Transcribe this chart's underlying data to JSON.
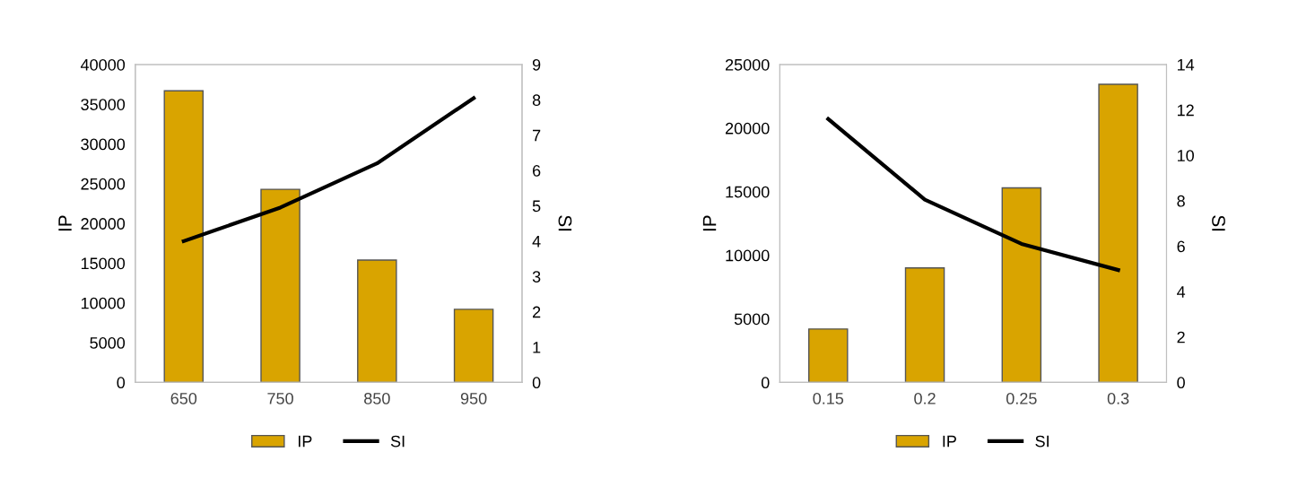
{
  "chart_data": [
    {
      "type": "bar",
      "categories": [
        "650",
        "750",
        "850",
        "950"
      ],
      "ylabel": "IP",
      "y2label": "SI",
      "ylim": [
        0,
        40000
      ],
      "yticks": [
        0,
        5000,
        10000,
        15000,
        20000,
        25000,
        30000,
        35000,
        40000
      ],
      "y2lim": [
        0,
        9
      ],
      "y2ticks": [
        0,
        1,
        2,
        3,
        4,
        5,
        6,
        7,
        8,
        9
      ],
      "legend": "bottom",
      "grid": false,
      "series": [
        {
          "name": "IP",
          "color": "#d9a400",
          "values": [
            36700,
            24300,
            15400,
            9200
          ]
        },
        {
          "name": "SI",
          "type": "line",
          "axis": "y2",
          "color": "#000000",
          "values": [
            4.0,
            4.95,
            6.2,
            8.05
          ]
        }
      ]
    },
    {
      "type": "bar",
      "categories": [
        "0.15",
        "0.2",
        "0.25",
        "0.3"
      ],
      "ylabel": "IP",
      "y2label": "SI",
      "ylim": [
        0,
        25000
      ],
      "yticks": [
        0,
        5000,
        10000,
        15000,
        20000,
        25000
      ],
      "y2lim": [
        0,
        14
      ],
      "y2ticks": [
        0,
        2,
        4,
        6,
        8,
        10,
        12,
        14
      ],
      "legend": "bottom",
      "grid": false,
      "series": [
        {
          "name": "IP",
          "color": "#d9a400",
          "values": [
            4200,
            9000,
            15300,
            23450
          ]
        },
        {
          "name": "SI",
          "type": "line",
          "axis": "y2",
          "color": "#000000",
          "values": [
            11.6,
            8.05,
            6.1,
            4.95
          ]
        }
      ]
    }
  ]
}
